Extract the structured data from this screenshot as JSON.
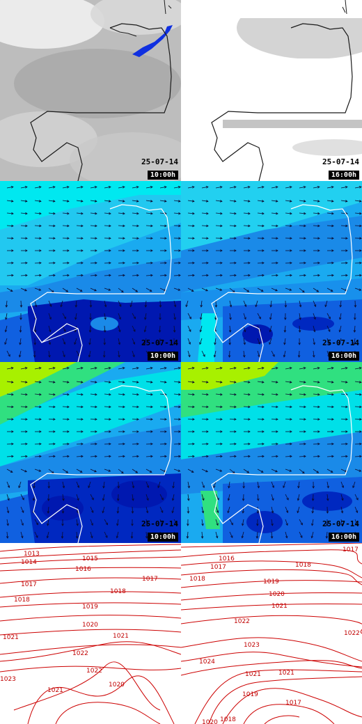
{
  "panels": [
    {
      "id": "cloud-1000",
      "layer": "cloud-cover",
      "date": "25-07-14",
      "time": "10:00h"
    },
    {
      "id": "cloud-1600",
      "layer": "cloud-cover",
      "date": "25-07-14",
      "time": "16:00h"
    },
    {
      "id": "wind-a-1000",
      "layer": "wind-speed",
      "date": "25-07-14",
      "time": "10:00h"
    },
    {
      "id": "wind-a-1600",
      "layer": "wind-speed",
      "date": "25-07-14",
      "time": "16:00h"
    },
    {
      "id": "wind-b-1000",
      "layer": "wind-gusts",
      "date": "25-07-14",
      "time": "10:00h"
    },
    {
      "id": "wind-b-1600",
      "layer": "wind-gusts",
      "date": "25-07-14",
      "time": "16:00h"
    },
    {
      "id": "pressure-left",
      "layer": "isobars"
    },
    {
      "id": "pressure-right",
      "layer": "isobars"
    }
  ],
  "isobars_left": [
    "1013",
    "1014",
    "1015",
    "1016",
    "1017",
    "1018",
    "1017",
    "1018",
    "1019",
    "1020",
    "1021",
    "1021",
    "1022",
    "1022",
    "1023",
    "1021",
    "1020"
  ],
  "isobars_right": [
    "1017",
    "1016",
    "1017",
    "1018",
    "1018",
    "1019",
    "1020",
    "1021",
    "1022",
    "1022",
    "1023",
    "1024",
    "1021",
    "1021",
    "1019",
    "1017",
    "1018",
    "1020"
  ],
  "colors": {
    "coast": "#ffffff",
    "coast_dark": "#202020",
    "isobar": "#cc0000",
    "cloud_light": "#f2f2f2",
    "cloud_grey": "#b4b4b4",
    "precip": "#1030e0",
    "wind_cyan": "#00e8f0",
    "wind_sky": "#1aaaf0",
    "wind_blue": "#1060e0",
    "wind_navy": "#0018b0",
    "wind_green": "#30e080",
    "wind_lime": "#a8f000"
  }
}
